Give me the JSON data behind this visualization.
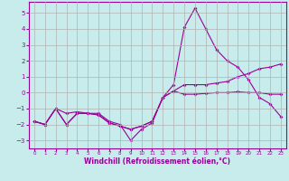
{
  "xlabel": "Windchill (Refroidissement éolien,°C)",
  "background_color": "#c8ecec",
  "line_color": "#990099",
  "grid_color": "#b0b0b0",
  "xlim": [
    -0.5,
    23.5
  ],
  "ylim": [
    -3.5,
    5.7
  ],
  "yticks": [
    -3,
    -2,
    -1,
    0,
    1,
    2,
    3,
    4,
    5
  ],
  "xticks": [
    0,
    1,
    2,
    3,
    4,
    5,
    6,
    7,
    8,
    9,
    10,
    11,
    12,
    13,
    14,
    15,
    16,
    17,
    18,
    19,
    20,
    21,
    22,
    23
  ],
  "hours": [
    0,
    1,
    2,
    3,
    4,
    5,
    6,
    7,
    8,
    9,
    10,
    11,
    12,
    13,
    14,
    15,
    16,
    17,
    18,
    19,
    20,
    21,
    22,
    23
  ],
  "line_max": [
    -1.8,
    -2.0,
    -1.0,
    -1.3,
    -1.2,
    -1.3,
    -1.3,
    -1.8,
    -2.0,
    -3.0,
    -2.3,
    -1.9,
    -0.3,
    0.5,
    4.1,
    5.3,
    4.0,
    2.7,
    2.0,
    1.6,
    0.8,
    -0.3,
    -0.7,
    -1.5
  ],
  "line_mid": [
    -1.8,
    -2.0,
    -1.0,
    -2.0,
    -1.3,
    -1.3,
    -1.4,
    -1.9,
    -2.1,
    -2.3,
    -2.1,
    -1.8,
    -0.3,
    0.1,
    0.5,
    0.5,
    0.5,
    0.6,
    0.7,
    1.0,
    1.2,
    1.5,
    1.6,
    1.8
  ],
  "line_min": [
    -1.8,
    -2.0,
    -1.0,
    -2.0,
    -1.3,
    -1.3,
    -1.4,
    -1.9,
    -2.1,
    -2.3,
    -2.1,
    -1.8,
    -0.3,
    0.1,
    -0.1,
    -0.1,
    -0.05,
    0.0,
    0.0,
    0.05,
    0.0,
    0.0,
    -0.1,
    -0.1
  ]
}
